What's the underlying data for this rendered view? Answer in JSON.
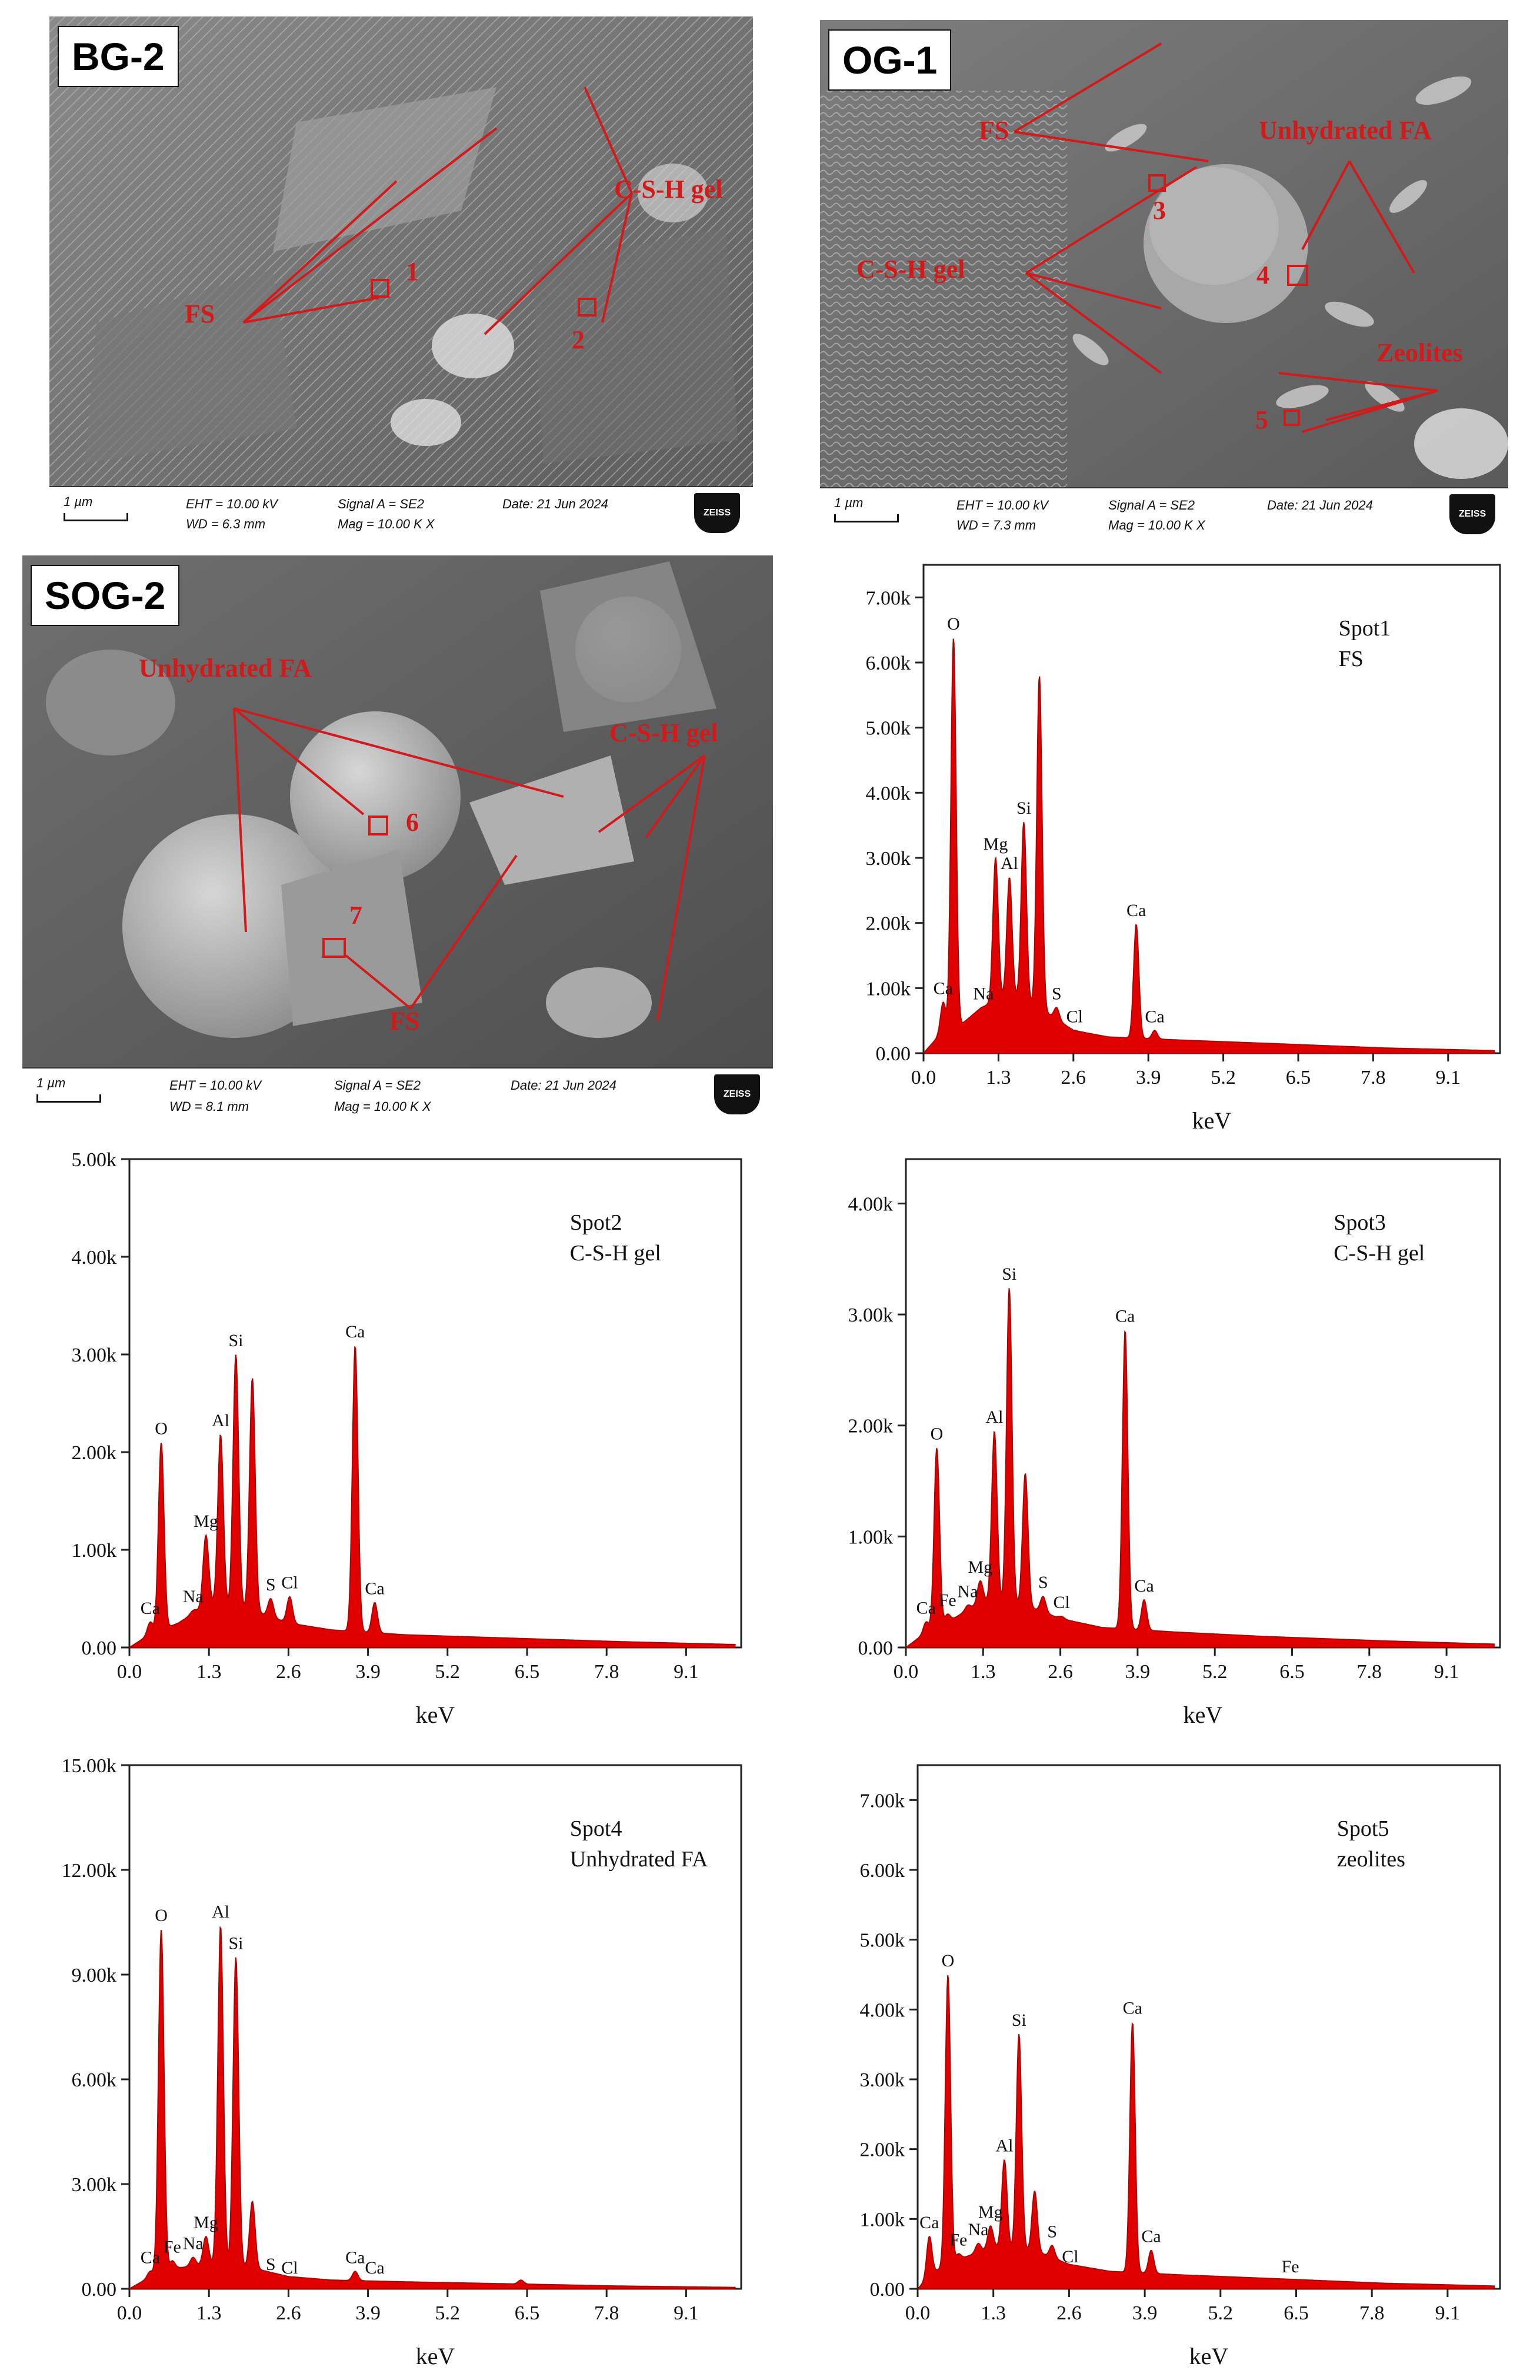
{
  "sem_panels": [
    {
      "label": "BG-2",
      "info": {
        "scale": "1 µm",
        "eht": "EHT = 10.00 kV",
        "wd": "WD = 6.3 mm",
        "signal": "Signal A = SE2",
        "mag": "Mag =  10.00 K X",
        "date": "Date: 21 Jun 2024",
        "brand": "ZEISS"
      },
      "annotations": [
        {
          "text": "FS",
          "size": 44
        },
        {
          "text": "C-S-H gel",
          "size": 44
        },
        {
          "text": "1",
          "size": 44
        },
        {
          "text": "2",
          "size": 44
        }
      ]
    },
    {
      "label": "OG-1",
      "info": {
        "scale": "1 µm",
        "eht": "EHT = 10.00 kV",
        "wd": "WD = 7.3 mm",
        "signal": "Signal A = SE2",
        "mag": "Mag =  10.00 K X",
        "date": "Date: 21 Jun 2024",
        "brand": "ZEISS"
      },
      "annotations": [
        {
          "text": "FS",
          "size": 44
        },
        {
          "text": "Unhydrated FA",
          "size": 44
        },
        {
          "text": "C-S-H gel",
          "size": 44
        },
        {
          "text": "Zeolites",
          "size": 44
        },
        {
          "text": "3",
          "size": 44
        },
        {
          "text": "4",
          "size": 44
        },
        {
          "text": "5",
          "size": 44
        }
      ]
    },
    {
      "label": "SOG-2",
      "info": {
        "scale": "1 µm",
        "eht": "EHT = 10.00 kV",
        "wd": "WD = 8.1 mm",
        "signal": "Signal A = SE2",
        "mag": "Mag =  10.00 K X",
        "date": "Date: 21 Jun 2024",
        "brand": "ZEISS"
      },
      "annotations": [
        {
          "text": "Unhydrated FA",
          "size": 44
        },
        {
          "text": "C-S-H gel",
          "size": 44
        },
        {
          "text": "FS",
          "size": 44
        },
        {
          "text": "6",
          "size": 44
        },
        {
          "text": "7",
          "size": 44
        }
      ]
    }
  ],
  "colors": {
    "spectrum_fill": "#e00000",
    "spectrum_line": "#b00000",
    "annotation": "#d21a1a"
  },
  "chart_data": [
    {
      "type": "area",
      "title": "Spot1",
      "subtitle": "FS",
      "xlabel": "keV",
      "xlim": [
        0,
        10
      ],
      "ylim": [
        0,
        7500
      ],
      "xticks": [
        "0.0",
        "1.3",
        "2.6",
        "3.9",
        "5.2",
        "6.5",
        "7.8",
        "9.1"
      ],
      "yticks": [
        "0.00",
        "1.00k",
        "2.00k",
        "3.00k",
        "4.00k",
        "5.00k",
        "6.00k",
        "7.00k"
      ],
      "baseline": [
        [
          0.0,
          0
        ],
        [
          0.25,
          250
        ],
        [
          0.6,
          400
        ],
        [
          1.0,
          700
        ],
        [
          1.5,
          900
        ],
        [
          2.0,
          700
        ],
        [
          2.6,
          350
        ],
        [
          3.2,
          250
        ],
        [
          4.5,
          200
        ],
        [
          6.0,
          150
        ],
        [
          8.0,
          80
        ],
        [
          9.9,
          40
        ]
      ],
      "peaks": [
        {
          "label": "Ca",
          "x": 0.34,
          "y": 780
        },
        {
          "label": "O",
          "x": 0.52,
          "y": 6380
        },
        {
          "label": "Na",
          "x": 1.04,
          "y": 700
        },
        {
          "label": "Mg",
          "x": 1.25,
          "y": 3000
        },
        {
          "label": "Al",
          "x": 1.49,
          "y": 2700
        },
        {
          "label": "Si",
          "x": 1.74,
          "y": 3550
        },
        {
          "label": "",
          "x": 2.01,
          "y": 5800
        },
        {
          "label": "S",
          "x": 2.31,
          "y": 700
        },
        {
          "label": "Cl",
          "x": 2.62,
          "y": 350
        },
        {
          "label": "Ca",
          "x": 3.69,
          "y": 1980
        },
        {
          "label": "Ca",
          "x": 4.01,
          "y": 350
        }
      ]
    },
    {
      "type": "area",
      "title": "Spot2",
      "subtitle": "C-S-H gel",
      "xlabel": "keV",
      "xlim": [
        0,
        10
      ],
      "ylim": [
        0,
        5000
      ],
      "xticks": [
        "0.0",
        "1.3",
        "2.6",
        "3.9",
        "5.2",
        "6.5",
        "7.8",
        "9.1"
      ],
      "yticks": [
        "0.00",
        "1.00k",
        "2.00k",
        "3.00k",
        "4.00k",
        "5.00k"
      ],
      "baseline": [
        [
          0.0,
          0
        ],
        [
          0.3,
          120
        ],
        [
          0.8,
          250
        ],
        [
          1.3,
          450
        ],
        [
          2.0,
          380
        ],
        [
          2.6,
          250
        ],
        [
          3.3,
          180
        ],
        [
          4.5,
          130
        ],
        [
          6.0,
          100
        ],
        [
          8.0,
          60
        ],
        [
          9.9,
          30
        ]
      ],
      "peaks": [
        {
          "label": "Ca",
          "x": 0.34,
          "y": 260
        },
        {
          "label": "O",
          "x": 0.52,
          "y": 2100
        },
        {
          "label": "Na",
          "x": 1.04,
          "y": 380
        },
        {
          "label": "Mg",
          "x": 1.25,
          "y": 1150
        },
        {
          "label": "Al",
          "x": 1.49,
          "y": 2180
        },
        {
          "label": "Si",
          "x": 1.74,
          "y": 3000
        },
        {
          "label": "",
          "x": 2.01,
          "y": 2760
        },
        {
          "label": "S",
          "x": 2.31,
          "y": 500
        },
        {
          "label": "Cl",
          "x": 2.62,
          "y": 520
        },
        {
          "label": "Ca",
          "x": 3.69,
          "y": 3090
        },
        {
          "label": "Ca",
          "x": 4.01,
          "y": 460
        }
      ]
    },
    {
      "type": "area",
      "title": "Spot3",
      "subtitle": "C-S-H gel",
      "xlabel": "keV",
      "xlim": [
        0,
        10
      ],
      "ylim": [
        0,
        4400
      ],
      "xticks": [
        "0.0",
        "1.3",
        "2.6",
        "3.9",
        "5.2",
        "6.5",
        "7.8",
        "9.1"
      ],
      "yticks": [
        "0.00",
        "1.00k",
        "2.00k",
        "3.00k",
        "4.00k"
      ],
      "baseline": [
        [
          0.0,
          0
        ],
        [
          0.3,
          120
        ],
        [
          0.8,
          260
        ],
        [
          1.3,
          420
        ],
        [
          2.0,
          380
        ],
        [
          2.6,
          260
        ],
        [
          3.3,
          180
        ],
        [
          4.5,
          140
        ],
        [
          6.0,
          100
        ],
        [
          8.0,
          60
        ],
        [
          9.9,
          30
        ]
      ],
      "peaks": [
        {
          "label": "Ca",
          "x": 0.34,
          "y": 230
        },
        {
          "label": "O",
          "x": 0.52,
          "y": 1800
        },
        {
          "label": "Fe",
          "x": 0.7,
          "y": 300
        },
        {
          "label": "Na",
          "x": 1.04,
          "y": 380
        },
        {
          "label": "Mg",
          "x": 1.25,
          "y": 600
        },
        {
          "label": "Al",
          "x": 1.49,
          "y": 1950
        },
        {
          "label": "Si",
          "x": 1.74,
          "y": 3240
        },
        {
          "label": "",
          "x": 2.01,
          "y": 1570
        },
        {
          "label": "S",
          "x": 2.31,
          "y": 460
        },
        {
          "label": "Cl",
          "x": 2.62,
          "y": 280
        },
        {
          "label": "Ca",
          "x": 3.69,
          "y": 2860
        },
        {
          "label": "Ca",
          "x": 4.01,
          "y": 430
        }
      ]
    },
    {
      "type": "area",
      "title": "Spot4",
      "subtitle": "Unhydrated FA",
      "xlabel": "keV",
      "xlim": [
        0,
        10
      ],
      "ylim": [
        0,
        15000
      ],
      "xticks": [
        "0.0",
        "1.3",
        "2.6",
        "3.9",
        "5.2",
        "6.5",
        "7.8",
        "9.1"
      ],
      "yticks": [
        "0.00",
        "3.00k",
        "6.00k",
        "9.00k",
        "12.00k",
        "15.00k"
      ],
      "baseline": [
        [
          0.0,
          0
        ],
        [
          0.3,
          300
        ],
        [
          0.8,
          600
        ],
        [
          1.3,
          700
        ],
        [
          2.0,
          600
        ],
        [
          2.6,
          350
        ],
        [
          3.3,
          250
        ],
        [
          4.5,
          200
        ],
        [
          6.0,
          150
        ],
        [
          8.0,
          80
        ],
        [
          9.9,
          40
        ]
      ],
      "peaks": [
        {
          "label": "Ca",
          "x": 0.34,
          "y": 500
        },
        {
          "label": "O",
          "x": 0.52,
          "y": 10300
        },
        {
          "label": "Fe",
          "x": 0.7,
          "y": 800
        },
        {
          "label": "Na",
          "x": 1.04,
          "y": 900
        },
        {
          "label": "Mg",
          "x": 1.25,
          "y": 1500
        },
        {
          "label": "Al",
          "x": 1.49,
          "y": 10400
        },
        {
          "label": "Si",
          "x": 1.74,
          "y": 9500
        },
        {
          "label": "",
          "x": 2.01,
          "y": 2500
        },
        {
          "label": "S",
          "x": 2.31,
          "y": 300
        },
        {
          "label": "Cl",
          "x": 2.62,
          "y": 200
        },
        {
          "label": "Ca",
          "x": 3.69,
          "y": 500
        },
        {
          "label": "Ca",
          "x": 4.01,
          "y": 200
        },
        {
          "label": "",
          "x": 6.4,
          "y": 250
        }
      ]
    },
    {
      "type": "area",
      "title": "Spot5",
      "subtitle": "zeolites",
      "xlabel": "keV",
      "xlim": [
        0,
        10
      ],
      "ylim": [
        0,
        7500
      ],
      "xticks": [
        "0.0",
        "1.3",
        "2.6",
        "3.9",
        "5.2",
        "6.5",
        "7.8",
        "9.1"
      ],
      "yticks": [
        "0.00",
        "1.00k",
        "2.00k",
        "3.00k",
        "4.00k",
        "5.00k",
        "6.00k",
        "7.00k"
      ],
      "baseline": [
        [
          0.0,
          0
        ],
        [
          0.3,
          250
        ],
        [
          0.8,
          450
        ],
        [
          1.3,
          600
        ],
        [
          2.0,
          550
        ],
        [
          2.6,
          350
        ],
        [
          3.3,
          250
        ],
        [
          4.5,
          200
        ],
        [
          6.0,
          150
        ],
        [
          8.0,
          80
        ],
        [
          9.9,
          40
        ]
      ],
      "peaks": [
        {
          "label": "Ca",
          "x": 0.2,
          "y": 750
        },
        {
          "label": "O",
          "x": 0.52,
          "y": 4500
        },
        {
          "label": "Fe",
          "x": 0.7,
          "y": 500
        },
        {
          "label": "Na",
          "x": 1.04,
          "y": 650
        },
        {
          "label": "Mg",
          "x": 1.25,
          "y": 900
        },
        {
          "label": "Al",
          "x": 1.49,
          "y": 1850
        },
        {
          "label": "Si",
          "x": 1.74,
          "y": 3650
        },
        {
          "label": "",
          "x": 2.01,
          "y": 1400
        },
        {
          "label": "S",
          "x": 2.31,
          "y": 620
        },
        {
          "label": "Cl",
          "x": 2.62,
          "y": 260
        },
        {
          "label": "Ca",
          "x": 3.69,
          "y": 3820
        },
        {
          "label": "Ca",
          "x": 4.01,
          "y": 550
        },
        {
          "label": "Fe",
          "x": 6.4,
          "y": 120
        }
      ]
    }
  ]
}
